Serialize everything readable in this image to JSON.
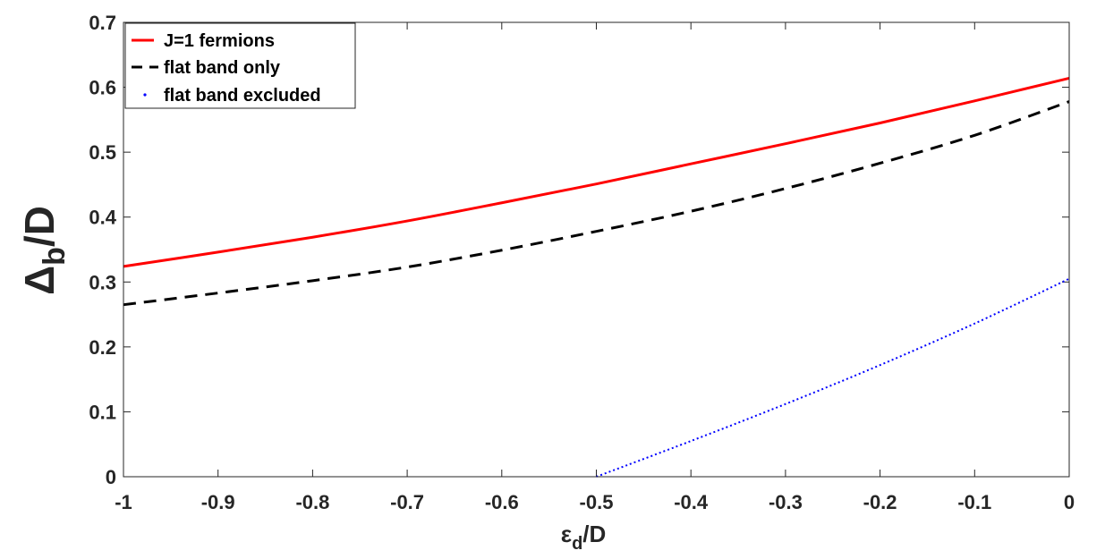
{
  "chart_data": {
    "type": "line",
    "xlabel_main": "ε",
    "xlabel_sub": "d",
    "xlabel_rest": "/D",
    "ylabel_main": "Δ",
    "ylabel_sub": "b",
    "ylabel_rest": "/D",
    "xlim": [
      -1,
      0
    ],
    "ylim": [
      0,
      0.7
    ],
    "xticks": [
      "-1",
      "-0.9",
      "-0.8",
      "-0.7",
      "-0.6",
      "-0.5",
      "-0.4",
      "-0.3",
      "-0.2",
      "-0.1",
      "0"
    ],
    "yticks": [
      "0",
      "0.1",
      "0.2",
      "0.3",
      "0.4",
      "0.5",
      "0.6",
      "0.7"
    ],
    "legend_position": "top-left",
    "series": [
      {
        "name": "J=1 fermions",
        "color": "#ff0000",
        "style": "solid",
        "x": [
          -1,
          -0.9,
          -0.8,
          -0.7,
          -0.6,
          -0.5,
          -0.4,
          -0.3,
          -0.2,
          -0.1,
          0
        ],
        "y": [
          0.324,
          0.346,
          0.369,
          0.394,
          0.422,
          0.451,
          0.482,
          0.513,
          0.545,
          0.579,
          0.614
        ]
      },
      {
        "name": "flat band only",
        "color": "#000000",
        "style": "dashed",
        "x": [
          -1,
          -0.9,
          -0.8,
          -0.7,
          -0.6,
          -0.5,
          -0.4,
          -0.3,
          -0.2,
          -0.1,
          0
        ],
        "y": [
          0.265,
          0.283,
          0.302,
          0.323,
          0.349,
          0.378,
          0.409,
          0.444,
          0.483,
          0.526,
          0.578
        ]
      },
      {
        "name": "flat band excluded",
        "color": "#0000ff",
        "style": "dotted",
        "x": [
          -0.5,
          -0.4,
          -0.3,
          -0.2,
          -0.1,
          0
        ],
        "y": [
          0.0,
          0.055,
          0.112,
          0.172,
          0.236,
          0.305
        ]
      }
    ]
  }
}
